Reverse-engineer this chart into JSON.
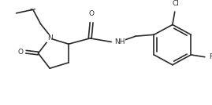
{
  "bg_color": "#ffffff",
  "line_color": "#2a2a2a",
  "line_width": 1.2,
  "font_size": 6.5,
  "figsize": [
    2.69,
    1.34
  ],
  "dpi": 100,
  "xlim": [
    0,
    269
  ],
  "ylim": [
    0,
    134
  ]
}
